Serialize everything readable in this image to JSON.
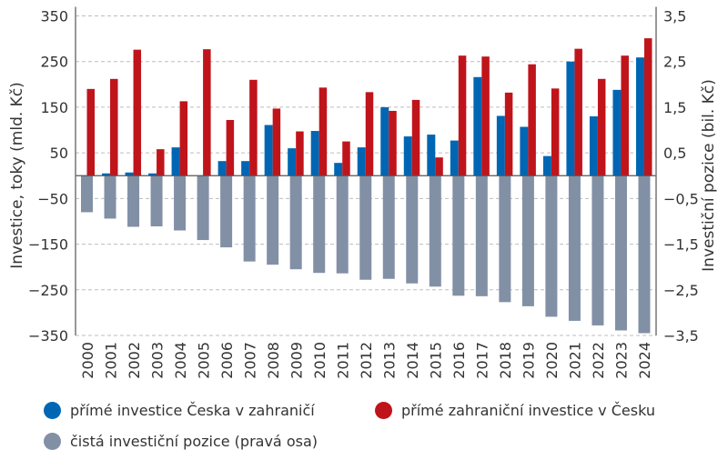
{
  "chart_data": {
    "type": "bar",
    "categories": [
      "2000",
      "2001",
      "2002",
      "2003",
      "2004",
      "2005",
      "2006",
      "2007",
      "2008",
      "2009",
      "2010",
      "2011",
      "2012",
      "2013",
      "2014",
      "2015",
      "2016",
      "2017",
      "2018",
      "2019",
      "2020",
      "2021",
      "2022",
      "2023",
      "2024"
    ],
    "series": [
      {
        "name": "přímé investice Česka v zahraničí",
        "axis": "left",
        "color": "#0066b3",
        "values": [
          0,
          5,
          7,
          5,
          62,
          0,
          32,
          32,
          111,
          60,
          98,
          28,
          62,
          150,
          86,
          90,
          77,
          216,
          131,
          107,
          43,
          250,
          130,
          188,
          259
        ]
      },
      {
        "name": "přímé zahraniční investice v Česku",
        "axis": "left",
        "color": "#c0141b",
        "values": [
          190,
          212,
          276,
          58,
          163,
          277,
          122,
          210,
          147,
          97,
          193,
          75,
          183,
          142,
          166,
          40,
          263,
          261,
          182,
          244,
          191,
          278,
          212,
          263,
          301
        ]
      },
      {
        "name": "čistá investiční pozice (pravá osa)",
        "axis": "right",
        "color": "#8290a6",
        "values": [
          -0.8,
          -0.94,
          -1.12,
          -1.11,
          -1.2,
          -1.41,
          -1.57,
          -1.88,
          -1.95,
          -2.05,
          -2.13,
          -2.14,
          -2.28,
          -2.26,
          -2.36,
          -2.43,
          -2.63,
          -2.64,
          -2.77,
          -2.86,
          -3.09,
          -3.18,
          -3.28,
          -3.39,
          -3.45
        ]
      }
    ],
    "ylabel": "Investice, toky (mld. Kč)",
    "ylabel_right": "Investiční pozice (bil. Kč)",
    "ylim": [
      -350,
      350
    ],
    "ylim_right": [
      -3.5,
      3.5
    ],
    "yticks": [
      "350",
      "250",
      "150",
      "50",
      "−50",
      "−150",
      "−250",
      "−350"
    ],
    "yticks_right": [
      "3,5",
      "2,5",
      "1,5",
      "0,5",
      "−0,5",
      "−1,5",
      "−2,5",
      "−3,5"
    ],
    "grid": true,
    "legend_position": "bottom"
  }
}
